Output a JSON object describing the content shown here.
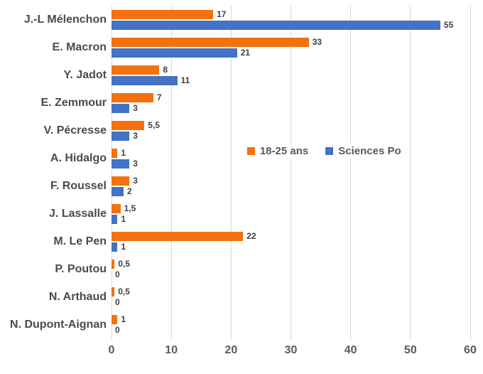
{
  "chart_data": {
    "type": "bar",
    "orientation": "horizontal",
    "title": "",
    "categories": [
      "J.-L Mélenchon",
      "E. Macron",
      "Y. Jadot",
      "E. Zemmour",
      "V. Pécresse",
      "A. Hidalgo",
      "F. Roussel",
      "J. Lassalle",
      "M. Le Pen",
      "P. Poutou",
      "N. Arthaud",
      "N. Dupont-Aignan"
    ],
    "series": [
      {
        "name": "18-25 ans",
        "color": "#f4710d",
        "values": [
          17,
          33,
          8,
          7,
          5.5,
          1,
          3,
          1.5,
          22,
          0.5,
          0.5,
          1
        ],
        "value_labels": [
          "17",
          "33",
          "8",
          "7",
          "5,5",
          "1",
          "3",
          "1,5",
          "22",
          "0,5",
          "0,5",
          "1"
        ]
      },
      {
        "name": "Sciences Po",
        "color": "#4472c4",
        "values": [
          55,
          21,
          11,
          3,
          3,
          3,
          2,
          1,
          1,
          0,
          0,
          0
        ],
        "value_labels": [
          "55",
          "21",
          "11",
          "3",
          "3",
          "3",
          "2",
          "1",
          "1",
          "0",
          "0",
          "0"
        ]
      }
    ],
    "xlim": [
      0,
      60
    ],
    "xticks": [
      0,
      10,
      20,
      30,
      40,
      50,
      60
    ],
    "grid": "vertical",
    "gridline_color": "#d9d9d9",
    "legend_position": "middle-right",
    "data_label_color": "#404040",
    "axis_label_color": "#595959"
  }
}
